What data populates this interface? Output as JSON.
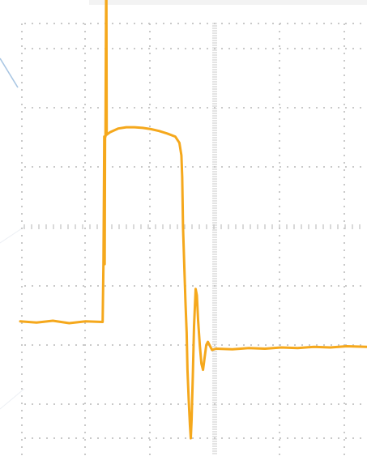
{
  "chart_data": {
    "type": "line",
    "title": "",
    "xlabel": "",
    "ylabel": "",
    "grid": true,
    "xlim": [
      -3,
      5.5
    ],
    "ylim": [
      -3.5,
      3.5
    ],
    "series": [
      {
        "color": "#f5a81c",
        "points": [
          [
            -3.0,
            -1.52
          ],
          [
            -2.6,
            -1.54
          ],
          [
            -2.2,
            -1.51
          ],
          [
            -1.8,
            -1.55
          ],
          [
            -1.4,
            -1.52
          ],
          [
            -0.98,
            -1.53
          ],
          [
            -0.96,
            -0.6
          ],
          [
            -0.95,
            0.4
          ],
          [
            -0.94,
            1.45
          ],
          [
            -0.93,
            -0.6
          ],
          [
            -0.92,
            1.45
          ],
          [
            -0.91,
            1.45
          ],
          [
            -0.89,
            4.4
          ],
          [
            -0.88,
            1.48
          ],
          [
            -0.8,
            1.52
          ],
          [
            -0.6,
            1.58
          ],
          [
            -0.4,
            1.6
          ],
          [
            -0.2,
            1.6
          ],
          [
            0.0,
            1.59
          ],
          [
            0.2,
            1.57
          ],
          [
            0.4,
            1.54
          ],
          [
            0.6,
            1.5
          ],
          [
            0.8,
            1.45
          ],
          [
            0.9,
            1.35
          ],
          [
            0.95,
            1.15
          ],
          [
            0.97,
            0.8
          ],
          [
            0.99,
            0.0
          ],
          [
            1.0,
            -0.2
          ],
          [
            1.02,
            -0.6
          ],
          [
            1.05,
            -1.2
          ],
          [
            1.08,
            -1.7
          ],
          [
            1.1,
            -2.3
          ],
          [
            1.13,
            -2.8
          ],
          [
            1.16,
            -3.2
          ],
          [
            1.18,
            -3.4
          ],
          [
            1.2,
            -3.1
          ],
          [
            1.23,
            -2.4
          ],
          [
            1.26,
            -1.6
          ],
          [
            1.3,
            -1.0
          ],
          [
            1.33,
            -1.1
          ],
          [
            1.36,
            -1.5
          ],
          [
            1.4,
            -1.9
          ],
          [
            1.44,
            -2.2
          ],
          [
            1.48,
            -2.3
          ],
          [
            1.52,
            -2.1
          ],
          [
            1.56,
            -1.9
          ],
          [
            1.6,
            -1.85
          ],
          [
            1.7,
            -1.98
          ],
          [
            1.8,
            -1.96
          ],
          [
            2.2,
            -1.97
          ],
          [
            2.6,
            -1.95
          ],
          [
            3.0,
            -1.96
          ],
          [
            3.4,
            -1.94
          ],
          [
            3.8,
            -1.95
          ],
          [
            4.2,
            -1.93
          ],
          [
            4.6,
            -1.94
          ],
          [
            5.0,
            -1.92
          ],
          [
            5.5,
            -1.93
          ]
        ]
      }
    ]
  }
}
